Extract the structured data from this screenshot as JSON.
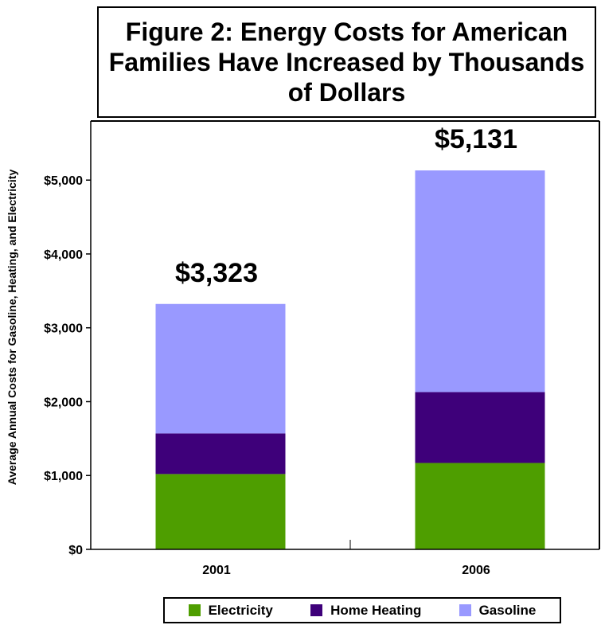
{
  "chart_data": {
    "type": "bar",
    "stacked": true,
    "title": "Figure 2:  Energy Costs for American Families Have Increased by Thousands of Dollars",
    "ylabel": "Average Annual Costs for Gasoline, Heating, and Electricity",
    "xlabel": "",
    "categories": [
      "2001",
      "2006"
    ],
    "ylim": [
      0,
      5800
    ],
    "yticks": [
      0,
      1000,
      2000,
      3000,
      4000,
      5000
    ],
    "ytick_labels": [
      "$0",
      "$1,000",
      "$2,000",
      "$3,000",
      "$4,000",
      "$5,000"
    ],
    "series": [
      {
        "name": "Electricity",
        "color": "#4e9e00",
        "values": [
          1020,
          1170
        ]
      },
      {
        "name": "Home Heating",
        "color": "#3e007a",
        "values": [
          550,
          960
        ]
      },
      {
        "name": "Gasoline",
        "color": "#9999ff",
        "values": [
          1753,
          3001
        ]
      }
    ],
    "totals": [
      3323,
      5131
    ],
    "total_labels": [
      "$3,323",
      "$5,131"
    ],
    "legend_position": "bottom"
  }
}
